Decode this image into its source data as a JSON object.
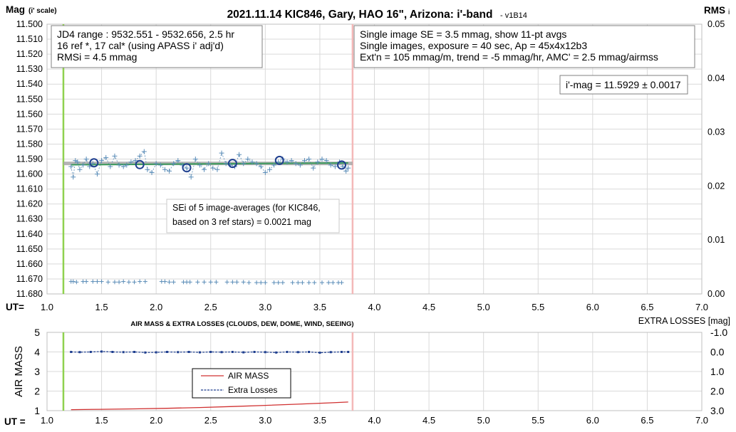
{
  "chart_data": [
    {
      "type": "scatter",
      "title": "2021.11.14 KIC846, Gary, HAO 16\", Arizona: i'-band",
      "title_suffix": "- v1B14",
      "ylabel_main": "Mag",
      "ylabel_sub": "(i' scale)",
      "y2label_main": "RMS",
      "y2label_sub": "i",
      "xlabel": "UT=",
      "xlim": [
        1.0,
        7.0
      ],
      "ylim": [
        11.5,
        11.68
      ],
      "y2lim": [
        0.0,
        0.05
      ],
      "x_ticks": [
        "1.0",
        "1.5",
        "2.0",
        "2.5",
        "3.0",
        "3.5",
        "4.0",
        "4.5",
        "5.0",
        "5.5",
        "6.0",
        "6.5",
        "7.0"
      ],
      "y_ticks": [
        "11.500",
        "11.510",
        "11.520",
        "11.530",
        "11.540",
        "11.550",
        "11.560",
        "11.570",
        "11.580",
        "11.590",
        "11.600",
        "11.610",
        "11.620",
        "11.630",
        "11.640",
        "11.650",
        "11.660",
        "11.670",
        "11.680"
      ],
      "y2_ticks": [
        "0.05",
        "0.04",
        "0.03",
        "0.02",
        "0.01",
        "0.00"
      ],
      "grid": true,
      "vertical_markers": [
        {
          "x": 1.15,
          "color": "#8fd14f"
        },
        {
          "x": 3.8,
          "color": "#f4b8b8"
        }
      ],
      "info_box_left": [
        "JD4 range : 9532.551 - 9532.656, 2.5  hr",
        "16 ref *, 17 cal* (using APASS i' adj'd)",
        "RMSi = 4.5 mmag"
      ],
      "info_box_right": [
        "Single image SE = 3.5 mmag, show 11-pt avgs",
        "Single images, exposure = 40 sec, Ap = 45x4x12b3",
        "Ext'n = 105 mmag/m, trend = -5 mmag/hr, AMC' = 2.5 mmag/airmss"
      ],
      "result_box": "i'-mag = 11.5929 ± 0.0017",
      "se_box": [
        "SEi of 5 image-averages (for KIC846,",
        "based on 3 ref stars) = 0.0021 mag"
      ],
      "series": [
        {
          "kind": "single",
          "color": "#5b8db8",
          "x": [
            1.22,
            1.24,
            1.26,
            1.28,
            1.3,
            1.33,
            1.36,
            1.39,
            1.42,
            1.46,
            1.5,
            1.54,
            1.58,
            1.62,
            1.66,
            1.7,
            1.73,
            1.77,
            1.81,
            1.85,
            1.89,
            1.92,
            1.96,
            2.0,
            2.04,
            2.08,
            2.12,
            2.16,
            2.2,
            2.24,
            2.28,
            2.32,
            2.36,
            2.4,
            2.44,
            2.48,
            2.52,
            2.56,
            2.6,
            2.64,
            2.68,
            2.72,
            2.76,
            2.8,
            2.84,
            2.88,
            2.92,
            2.96,
            3.0,
            3.04,
            3.08,
            3.12,
            3.16,
            3.2,
            3.24,
            3.28,
            3.32,
            3.36,
            3.4,
            3.44,
            3.48,
            3.52,
            3.56,
            3.6,
            3.64,
            3.68,
            3.71,
            3.74,
            3.76
          ],
          "y": [
            11.595,
            11.602,
            11.591,
            11.592,
            11.597,
            11.594,
            11.59,
            11.595,
            11.593,
            11.6,
            11.591,
            11.589,
            11.595,
            11.588,
            11.594,
            11.595,
            11.594,
            11.592,
            11.591,
            11.588,
            11.585,
            11.597,
            11.599,
            11.593,
            11.594,
            11.597,
            11.598,
            11.593,
            11.591,
            11.594,
            11.596,
            11.602,
            11.59,
            11.594,
            11.597,
            11.593,
            11.596,
            11.597,
            11.586,
            11.593,
            11.594,
            11.595,
            11.587,
            11.593,
            11.59,
            11.592,
            11.593,
            11.595,
            11.599,
            11.597,
            11.594,
            11.592,
            11.59,
            11.592,
            11.591,
            11.593,
            11.594,
            11.591,
            11.59,
            11.596,
            11.592,
            11.59,
            11.591,
            11.594,
            11.595,
            11.592,
            11.595,
            11.598,
            11.596
          ]
        },
        {
          "kind": "average",
          "color": "#1f3f8f",
          "x": [
            1.43,
            1.85,
            2.28,
            2.7,
            3.13,
            3.7
          ],
          "y": [
            11.5925,
            11.5937,
            11.5958,
            11.5929,
            11.5909,
            11.594
          ]
        },
        {
          "kind": "trend",
          "color": "#3a9a5a",
          "x": [
            1.22,
            3.76
          ],
          "y": [
            11.5938,
            11.5926
          ]
        },
        {
          "kind": "mean",
          "color": "#a8a8a8",
          "x": [
            1.15,
            3.8
          ],
          "y": [
            11.5929,
            11.5929
          ]
        },
        {
          "kind": "rms",
          "color": "#5b8db8",
          "x": [
            1.22,
            1.24,
            1.27,
            1.33,
            1.36,
            1.42,
            1.46,
            1.5,
            1.56,
            1.62,
            1.66,
            1.7,
            1.75,
            1.8,
            1.85,
            1.9,
            2.05,
            2.08,
            2.12,
            2.16,
            2.25,
            2.28,
            2.31,
            2.38,
            2.44,
            2.5,
            2.55,
            2.65,
            2.7,
            2.74,
            2.8,
            2.85,
            2.92,
            2.96,
            3.0,
            3.08,
            3.12,
            3.16,
            3.25,
            3.3,
            3.34,
            3.4,
            3.45,
            3.52,
            3.58,
            3.62,
            3.67,
            3.7
          ],
          "y2": [
            0.0023,
            0.0023,
            0.0022,
            0.0023,
            0.0023,
            0.0023,
            0.0023,
            0.0023,
            0.0022,
            0.0022,
            0.0022,
            0.0023,
            0.0022,
            0.0022,
            0.0023,
            0.0023,
            0.0023,
            0.0023,
            0.0022,
            0.0022,
            0.0022,
            0.0022,
            0.0022,
            0.0022,
            0.0022,
            0.0022,
            0.0022,
            0.0022,
            0.0022,
            0.0022,
            0.0022,
            0.0021,
            0.0021,
            0.0021,
            0.0021,
            0.0021,
            0.0021,
            0.0021,
            0.0021,
            0.0021,
            0.0021,
            0.0021,
            0.0021,
            0.0021,
            0.0021,
            0.0021,
            0.0021,
            0.0021
          ]
        }
      ]
    },
    {
      "type": "line",
      "title": "AIR MASS & EXTRA LOSSES (CLOUDS, DEW, DOME, WIND, SEEING)",
      "ylabel": "AIR MASS",
      "y2label": "EXTRA LOSSES [mag]",
      "xlabel": "UT =",
      "xlim": [
        1.0,
        7.0
      ],
      "ylim": [
        1,
        5
      ],
      "y2lim": [
        -1.0,
        3.0
      ],
      "x_ticks": [
        "1.0",
        "1.5",
        "2.0",
        "2.5",
        "3.0",
        "3.5",
        "4.0",
        "4.5",
        "5.0",
        "5.5",
        "6.0",
        "6.5",
        "7.0"
      ],
      "y_ticks": [
        "5",
        "4",
        "3",
        "2",
        "1"
      ],
      "y2_ticks": [
        "-1.0",
        "0.0",
        "1.0",
        "2.0",
        "3.0"
      ],
      "grid": true,
      "vertical_markers": [
        {
          "x": 1.15,
          "color": "#8fd14f"
        },
        {
          "x": 3.8,
          "color": "#f4b8b8"
        }
      ],
      "legend": [
        "AIR MASS",
        "Extra Losses"
      ],
      "series": [
        {
          "name": "AIR MASS",
          "color": "#d03030",
          "x": [
            1.22,
            1.5,
            1.8,
            2.1,
            2.4,
            2.7,
            3.0,
            3.3,
            3.6,
            3.76
          ],
          "y": [
            1.05,
            1.07,
            1.09,
            1.12,
            1.16,
            1.21,
            1.27,
            1.33,
            1.4,
            1.44
          ]
        },
        {
          "name": "Extra Losses",
          "color": "#1f3f8f",
          "x": [
            1.22,
            1.3,
            1.4,
            1.5,
            1.6,
            1.7,
            1.8,
            1.9,
            2.0,
            2.1,
            2.2,
            2.3,
            2.4,
            2.5,
            2.6,
            2.7,
            2.8,
            2.9,
            3.0,
            3.1,
            3.2,
            3.3,
            3.4,
            3.5,
            3.6,
            3.7,
            3.76
          ],
          "y2": [
            0.0,
            0.01,
            0.0,
            -0.02,
            0.0,
            0.01,
            0.0,
            0.03,
            0.02,
            0.0,
            0.01,
            0.0,
            0.02,
            0.0,
            0.01,
            0.0,
            0.02,
            0.0,
            0.01,
            0.03,
            0.0,
            0.01,
            0.0,
            0.04,
            0.01,
            0.0,
            0.0
          ]
        }
      ]
    }
  ]
}
